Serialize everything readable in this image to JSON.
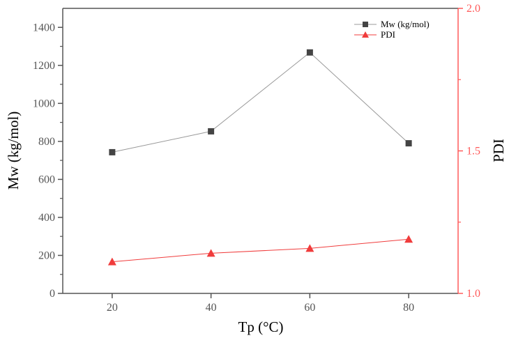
{
  "chart_data": {
    "type": "line",
    "x": [
      20,
      40,
      60,
      80
    ],
    "xlabel": "Tp (°C)",
    "xlim": [
      10,
      90
    ],
    "xticks": [
      "20",
      "40",
      "60",
      "80"
    ],
    "ylabel_left": "Mw (kg/mol)",
    "ylim_left": [
      0,
      1500
    ],
    "yticks_left": [
      "0",
      "200",
      "400",
      "600",
      "800",
      "1000",
      "1200",
      "1400"
    ],
    "ylabel_right": "PDI",
    "ylim_right": [
      1.0,
      2.0
    ],
    "yticks_right": [
      "1.0",
      "1.5",
      "2.0"
    ],
    "grid": false,
    "legend_position": "top-right",
    "series": [
      {
        "name": "Mw (kg/mol)",
        "axis": "left",
        "marker": "square",
        "color": "#444444",
        "line_color": "#999999",
        "values": [
          743,
          853,
          1268,
          790
        ]
      },
      {
        "name": "PDI",
        "axis": "right",
        "marker": "triangle",
        "color": "#f03c3c",
        "line_color": "#f03c3c",
        "values": [
          1.111,
          1.141,
          1.158,
          1.19
        ]
      }
    ],
    "colors": {
      "left_axis": "#555555",
      "right_axis": "#ff5a5a"
    }
  }
}
